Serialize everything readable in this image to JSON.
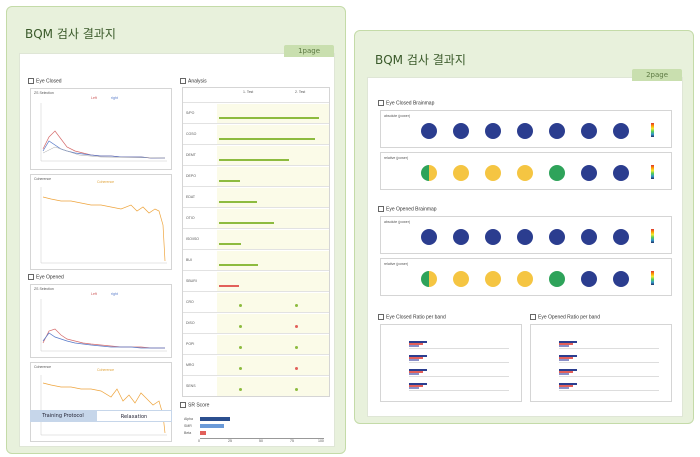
{
  "page1": {
    "title": "BQM 검사 결과지",
    "page_tag": "1page",
    "eye_closed": {
      "section": "Eye Closed",
      "qeeg_title": "ZS Selection",
      "legend1": "Left",
      "legend2": "right",
      "coherence_title": "Coherence",
      "coherence_legend": "Coherence"
    },
    "eye_opened": {
      "section": "Eye Opened",
      "qeeg_title": "ZS Selection",
      "legend1": "Left",
      "legend2": "right",
      "coherence_title": "Coherence",
      "coherence_legend": "Coherence"
    },
    "analysis": {
      "section": "Analysis",
      "col1": "1. Test",
      "col2": "2. Test",
      "rows": [
        "S/PO",
        "COSO",
        "DEMT",
        "DEPO",
        "EDAT",
        "OTIO",
        "ISO/ISO",
        "BUI",
        "SBURI",
        "CRO",
        "DISO",
        "POPI",
        "MRO",
        "SENS"
      ]
    },
    "sr_score": {
      "section": "SR Score",
      "labels": [
        "Alpha",
        "SMR",
        "Beta"
      ],
      "axis": [
        "0",
        "25",
        "50",
        "75",
        "100"
      ]
    },
    "training": {
      "label": "Training Protocol",
      "value": "Relaxation"
    }
  },
  "page2": {
    "title": "BQM 검사 결과지",
    "page_tag": "2page",
    "closed_brainmap": {
      "section": "Eye Closed Brainmap",
      "row1_label": "absolute (power)",
      "row2_label": "relative (power)"
    },
    "opened_brainmap": {
      "section": "Eye Opened Brainmap",
      "row1_label": "absolute (power)",
      "row2_label": "relative (power)"
    },
    "closed_ratio": {
      "section": "Eye Closed Ratio per band"
    },
    "opened_ratio": {
      "section": "Eye Opened Ratio per band"
    }
  },
  "colors": {
    "panel_bg": "#e8f1dc",
    "accent_green": "#8dbb3f",
    "accent_red": "#e2605a",
    "brain_navy": "#2b3d8f",
    "brain_yellow": "#f5c542",
    "brain_green": "#2ea35a"
  }
}
